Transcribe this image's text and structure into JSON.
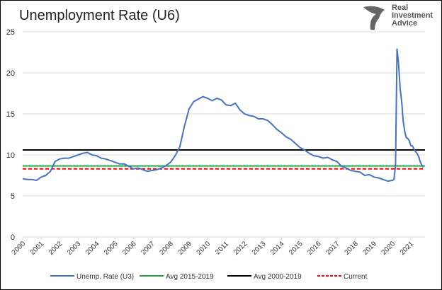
{
  "chart_data": {
    "type": "line",
    "title": "Unemployment Rate (U6)",
    "ylim": [
      0,
      25
    ],
    "yticks": [
      0,
      5,
      10,
      15,
      20,
      25
    ],
    "xticks": [
      "2000",
      "2001",
      "2002",
      "2003",
      "2004",
      "2005",
      "2006",
      "2007",
      "2008",
      "2009",
      "2010",
      "2011",
      "2012",
      "2013",
      "2014",
      "2015",
      "2016",
      "2017",
      "2018",
      "2019",
      "2020",
      "2021"
    ],
    "grid": "horizontal",
    "legend": "bottom",
    "series": [
      {
        "name": "Unemp. Rate (U3)",
        "color": "#4472C4",
        "style": "solid",
        "x": [
          2000,
          2000.25,
          2000.5,
          2000.75,
          2001,
          2001.25,
          2001.5,
          2001.75,
          2002,
          2002.25,
          2002.5,
          2002.75,
          2003,
          2003.25,
          2003.5,
          2003.75,
          2004,
          2004.25,
          2004.5,
          2004.75,
          2005,
          2005.25,
          2005.5,
          2005.75,
          2006,
          2006.25,
          2006.5,
          2006.75,
          2007,
          2007.25,
          2007.5,
          2007.75,
          2008,
          2008.25,
          2008.5,
          2008.75,
          2009,
          2009.25,
          2009.5,
          2009.75,
          2010,
          2010.25,
          2010.5,
          2010.75,
          2011,
          2011.25,
          2011.5,
          2011.75,
          2012,
          2012.25,
          2012.5,
          2012.75,
          2013,
          2013.25,
          2013.5,
          2013.75,
          2014,
          2014.25,
          2014.5,
          2014.75,
          2015,
          2015.25,
          2015.5,
          2015.75,
          2016,
          2016.25,
          2016.5,
          2016.75,
          2017,
          2017.25,
          2017.5,
          2017.75,
          2018,
          2018.25,
          2018.5,
          2018.75,
          2019,
          2019.25,
          2019.5,
          2019.75,
          2020,
          2020.08,
          2020.17,
          2020.25,
          2020.33,
          2020.42,
          2020.5,
          2020.58,
          2020.67,
          2020.75,
          2020.83,
          2020.92,
          2021,
          2021.08,
          2021.17,
          2021.25,
          2021.33,
          2021.42,
          2021.5,
          2021.58,
          2021.67
        ],
        "values": [
          7.1,
          7.0,
          7.0,
          6.9,
          7.3,
          7.5,
          8.0,
          9.2,
          9.5,
          9.6,
          9.6,
          9.8,
          10.0,
          10.2,
          10.3,
          10.0,
          9.9,
          9.6,
          9.5,
          9.3,
          9.1,
          8.9,
          8.9,
          8.6,
          8.3,
          8.4,
          8.2,
          8.0,
          8.1,
          8.2,
          8.4,
          8.7,
          9.1,
          9.9,
          11.0,
          13.5,
          15.6,
          16.5,
          16.8,
          17.1,
          16.9,
          16.6,
          16.9,
          16.7,
          16.1,
          16.0,
          16.3,
          15.5,
          15.0,
          14.8,
          14.7,
          14.4,
          14.4,
          14.2,
          13.7,
          13.1,
          12.7,
          12.2,
          11.9,
          11.4,
          10.9,
          10.6,
          10.2,
          9.9,
          9.8,
          9.6,
          9.7,
          9.4,
          9.2,
          8.6,
          8.4,
          8.1,
          8.0,
          7.9,
          7.5,
          7.6,
          7.3,
          7.2,
          7.0,
          6.8,
          6.9,
          7.0,
          8.7,
          22.9,
          21.2,
          18.0,
          16.5,
          14.2,
          12.8,
          12.1,
          12.0,
          11.7,
          11.1,
          11.1,
          10.7,
          10.4,
          10.2,
          9.8,
          9.2,
          8.8,
          8.5
        ]
      },
      {
        "name": "Avg 2015-2019",
        "color": "#22A845",
        "style": "solid",
        "values": [
          8.65
        ]
      },
      {
        "name": "Avg 2000-2019",
        "color": "#000000",
        "style": "solid",
        "values": [
          10.6
        ]
      },
      {
        "name": "Current",
        "color": "#FF0000",
        "style": "dashed",
        "values": [
          8.3
        ]
      }
    ]
  },
  "logo": {
    "text": "Real Investment Advice"
  }
}
